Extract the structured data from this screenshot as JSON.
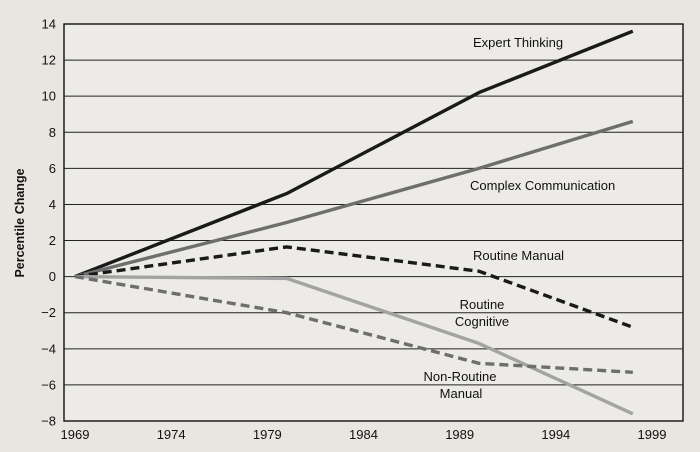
{
  "chart_data": {
    "type": "line",
    "title": "",
    "xlabel": "",
    "ylabel": "Percentile Change",
    "xlim": [
      1969,
      1999
    ],
    "ylim": [
      -8,
      14
    ],
    "xticks": [
      1969,
      1974,
      1979,
      1984,
      1989,
      1994,
      1999
    ],
    "yticks": [
      -8,
      -6,
      -4,
      -2,
      0,
      2,
      4,
      6,
      8,
      10,
      12,
      14
    ],
    "grid": "horizontal",
    "legend": "none",
    "series": [
      {
        "name": "Expert Thinking",
        "style": "solid",
        "color": "#1a1a1a",
        "x": [
          1969,
          1980,
          1990,
          1998
        ],
        "y": [
          0,
          4.6,
          10.2,
          13.6
        ]
      },
      {
        "name": "Complex Communication",
        "style": "solid",
        "color": "#6e6e6e",
        "x": [
          1969,
          1980,
          1990,
          1998
        ],
        "y": [
          0,
          3.0,
          6.0,
          8.6
        ]
      },
      {
        "name": "Routine Manual",
        "style": "dashed",
        "color": "#1a1a1a",
        "x": [
          1969,
          1980,
          1990,
          1998
        ],
        "y": [
          0,
          1.65,
          0.3,
          -2.8
        ]
      },
      {
        "name": "Routine Cognitive",
        "style": "solid",
        "color": "#a3a3a3",
        "x": [
          1969,
          1980,
          1990,
          1998
        ],
        "y": [
          0,
          -0.1,
          -3.7,
          -7.6
        ]
      },
      {
        "name": "Non-Routine Manual",
        "style": "dashed",
        "color": "#6e6e6e",
        "x": [
          1969,
          1980,
          1990,
          1998
        ],
        "y": [
          0,
          -2.0,
          -4.8,
          -5.3
        ]
      }
    ],
    "annotations": [
      {
        "text": "Expert Thinking"
      },
      {
        "text": "Complex Communication"
      },
      {
        "text": "Routine Manual"
      },
      {
        "text": "Routine"
      },
      {
        "text": "Cognitive"
      },
      {
        "text": "Non-Routine"
      },
      {
        "text": "Manual"
      }
    ]
  }
}
